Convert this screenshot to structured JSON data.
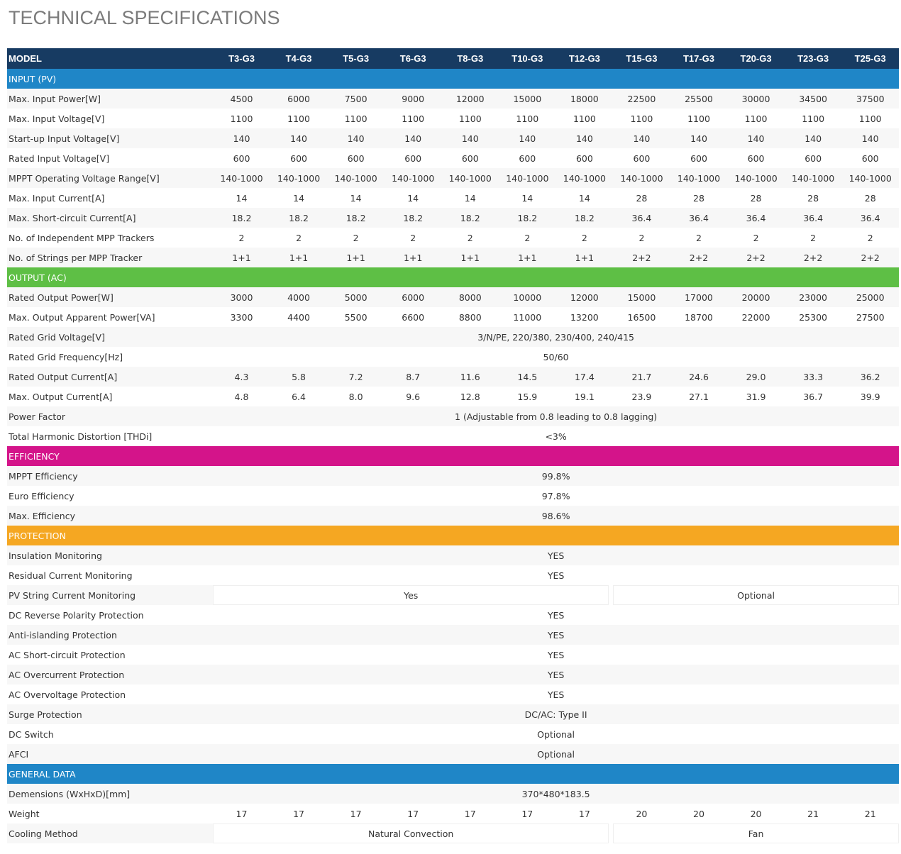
{
  "page_title": "TECHNICAL SPECIFICATIONS",
  "colors": {
    "header": "#173b62",
    "input": "#1f86c7",
    "output": "#5ebf45",
    "efficiency": "#d4148a",
    "protection": "#f5a722",
    "general": "#1f86c7"
  },
  "model_label": "MODEL",
  "models": [
    "T3-G3",
    "T4-G3",
    "T5-G3",
    "T6-G3",
    "T8-G3",
    "T10-G3",
    "T12-G3",
    "T15-G3",
    "T17-G3",
    "T20-G3",
    "T23-G3",
    "T25-G3"
  ],
  "sections": [
    {
      "title": "INPUT (PV)",
      "color": "#1f86c7",
      "rows": [
        {
          "label": "Max. Input Power[W]",
          "values": [
            "4500",
            "6000",
            "7500",
            "9000",
            "12000",
            "15000",
            "18000",
            "22500",
            "25500",
            "30000",
            "34500",
            "37500"
          ]
        },
        {
          "label": "Max. Input Voltage[V]",
          "values": [
            "1100",
            "1100",
            "1100",
            "1100",
            "1100",
            "1100",
            "1100",
            "1100",
            "1100",
            "1100",
            "1100",
            "1100"
          ]
        },
        {
          "label": "Start-up Input Voltage[V]",
          "values": [
            "140",
            "140",
            "140",
            "140",
            "140",
            "140",
            "140",
            "140",
            "140",
            "140",
            "140",
            "140"
          ]
        },
        {
          "label": "Rated Input Voltage[V]",
          "values": [
            "600",
            "600",
            "600",
            "600",
            "600",
            "600",
            "600",
            "600",
            "600",
            "600",
            "600",
            "600"
          ]
        },
        {
          "label": "MPPT Operating Voltage Range[V]",
          "values": [
            "140-1000",
            "140-1000",
            "140-1000",
            "140-1000",
            "140-1000",
            "140-1000",
            "140-1000",
            "140-1000",
            "140-1000",
            "140-1000",
            "140-1000",
            "140-1000"
          ]
        },
        {
          "label": "Max. Input Current[A]",
          "values": [
            "14",
            "14",
            "14",
            "14",
            "14",
            "14",
            "14",
            "28",
            "28",
            "28",
            "28",
            "28"
          ]
        },
        {
          "label": "Max. Short-circuit Current[A]",
          "values": [
            "18.2",
            "18.2",
            "18.2",
            "18.2",
            "18.2",
            "18.2",
            "18.2",
            "36.4",
            "36.4",
            "36.4",
            "36.4",
            "36.4"
          ]
        },
        {
          "label": "No. of Independent MPP Trackers",
          "values": [
            "2",
            "2",
            "2",
            "2",
            "2",
            "2",
            "2",
            "2",
            "2",
            "2",
            "2",
            "2"
          ]
        },
        {
          "label": "No. of Strings per MPP Tracker",
          "values": [
            "1+1",
            "1+1",
            "1+1",
            "1+1",
            "1+1",
            "1+1",
            "1+1",
            "2+2",
            "2+2",
            "2+2",
            "2+2",
            "2+2"
          ]
        }
      ]
    },
    {
      "title": "OUTPUT (AC)",
      "color": "#5ebf45",
      "rows": [
        {
          "label": "Rated Output Power[W]",
          "values": [
            "3000",
            "4000",
            "5000",
            "6000",
            "8000",
            "10000",
            "12000",
            "15000",
            "17000",
            "20000",
            "23000",
            "25000"
          ]
        },
        {
          "label": "Max. Output Apparent Power[VA]",
          "values": [
            "3300",
            "4400",
            "5500",
            "6600",
            "8800",
            "11000",
            "13200",
            "16500",
            "18700",
            "22000",
            "25300",
            "27500"
          ]
        },
        {
          "label": "Rated Grid Voltage[V]",
          "span": "3/N/PE, 220/380, 230/400, 240/415"
        },
        {
          "label": "Rated Grid Frequency[Hz]",
          "span": "50/60"
        },
        {
          "label": "Rated Output Current[A]",
          "values": [
            "4.3",
            "5.8",
            "7.2",
            "8.7",
            "11.6",
            "14.5",
            "17.4",
            "21.7",
            "24.6",
            "29.0",
            "33.3",
            "36.2"
          ]
        },
        {
          "label": "Max. Output Current[A]",
          "values": [
            "4.8",
            "6.4",
            "8.0",
            "9.6",
            "12.8",
            "15.9",
            "19.1",
            "23.9",
            "27.1",
            "31.9",
            "36.7",
            "39.9"
          ]
        },
        {
          "label": "Power Factor",
          "span": "1 (Adjustable from 0.8 leading to 0.8 lagging)"
        },
        {
          "label": "Total Harmonic Distortion [THDi]",
          "span": "<3%"
        }
      ]
    },
    {
      "title": "EFFICIENCY",
      "color": "#d4148a",
      "rows": [
        {
          "label": "MPPT Efficiency",
          "span": "99.8%"
        },
        {
          "label": "Euro Efficiency",
          "span": "97.8%"
        },
        {
          "label": "Max. Efficiency",
          "span": "98.6%"
        }
      ]
    },
    {
      "title": "PROTECTION",
      "color": "#f5a722",
      "rows": [
        {
          "label": "Insulation Monitoring",
          "span": "YES"
        },
        {
          "label": "Residual Current Monitoring",
          "span": "YES"
        },
        {
          "label": "PV String Current Monitoring",
          "split": [
            "Yes",
            "Optional"
          ]
        },
        {
          "label": "DC Reverse Polarity Protection",
          "span": "YES"
        },
        {
          "label": "Anti-islanding Protection",
          "span": "YES"
        },
        {
          "label": "AC Short-circuit Protection",
          "span": "YES"
        },
        {
          "label": "AC Overcurrent Protection",
          "span": "YES"
        },
        {
          "label": "AC Overvoltage Protection",
          "span": "YES"
        },
        {
          "label": "Surge Protection",
          "span": "DC/AC: Type II"
        },
        {
          "label": "DC Switch",
          "span": "Optional"
        },
        {
          "label": "AFCI",
          "span": "Optional"
        }
      ]
    },
    {
      "title": "GENERAL DATA",
      "color": "#1f86c7",
      "rows": [
        {
          "label": "Demensions (WxHxD)[mm]",
          "span": "370*480*183.5"
        },
        {
          "label": "Weight",
          "values": [
            "17",
            "17",
            "17",
            "17",
            "17",
            "17",
            "17",
            "20",
            "20",
            "20",
            "21",
            "21"
          ]
        },
        {
          "label": "Cooling Method",
          "split": [
            "Natural Convection",
            "Fan"
          ]
        }
      ]
    }
  ]
}
